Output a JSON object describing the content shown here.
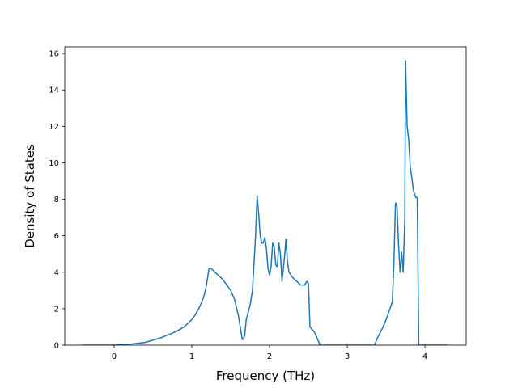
{
  "chart_data": {
    "type": "line",
    "x_label": "Frequency (THz)",
    "y_label": "Density of States",
    "x": [
      -0.41,
      0,
      0.2,
      0.4,
      0.6,
      0.8,
      0.9,
      1.0,
      1.05,
      1.1,
      1.15,
      1.18,
      1.2,
      1.22,
      1.25,
      1.3,
      1.4,
      1.5,
      1.55,
      1.6,
      1.65,
      1.68,
      1.7,
      1.75,
      1.78,
      1.82,
      1.84,
      1.86,
      1.88,
      1.9,
      1.92,
      1.94,
      1.96,
      1.98,
      2.0,
      2.02,
      2.04,
      2.06,
      2.08,
      2.1,
      2.12,
      2.14,
      2.16,
      2.18,
      2.2,
      2.21,
      2.23,
      2.25,
      2.3,
      2.35,
      2.4,
      2.45,
      2.48,
      2.5,
      2.52,
      2.58,
      2.62,
      2.65,
      3.35,
      3.4,
      3.45,
      3.5,
      3.55,
      3.58,
      3.6,
      3.62,
      3.64,
      3.66,
      3.68,
      3.7,
      3.72,
      3.74,
      3.75,
      3.77,
      3.79,
      3.81,
      3.83,
      3.85,
      3.88,
      3.9,
      3.92,
      4.29
    ],
    "values": [
      0,
      0,
      0.05,
      0.15,
      0.4,
      0.75,
      1.0,
      1.4,
      1.7,
      2.1,
      2.6,
      3.1,
      3.6,
      4.2,
      4.2,
      4.0,
      3.6,
      3.0,
      2.5,
      1.6,
      0.3,
      0.5,
      1.4,
      2.2,
      3.0,
      6.0,
      8.2,
      7.2,
      6.0,
      5.6,
      5.6,
      5.9,
      5.3,
      4.2,
      3.85,
      4.3,
      5.6,
      5.4,
      4.4,
      4.3,
      5.6,
      5.0,
      3.5,
      4.3,
      5.2,
      5.8,
      4.6,
      4.0,
      3.7,
      3.5,
      3.3,
      3.3,
      3.5,
      3.4,
      1.0,
      0.7,
      0.3,
      0,
      0,
      0.5,
      0.9,
      1.4,
      2.0,
      2.4,
      4.5,
      7.8,
      7.6,
      5.5,
      4.0,
      5.1,
      4.0,
      7.0,
      15.6,
      12.0,
      11.3,
      9.8,
      9.2,
      8.5,
      8.1,
      8.1,
      0,
      0
    ],
    "color": "#1f77b4",
    "xlim": [
      -0.635,
      4.53
    ],
    "ylim": [
      0,
      16.36
    ],
    "xticks": [
      0,
      1,
      2,
      3,
      4
    ],
    "yticks": [
      0,
      2,
      4,
      6,
      8,
      10,
      12,
      14,
      16
    ]
  }
}
